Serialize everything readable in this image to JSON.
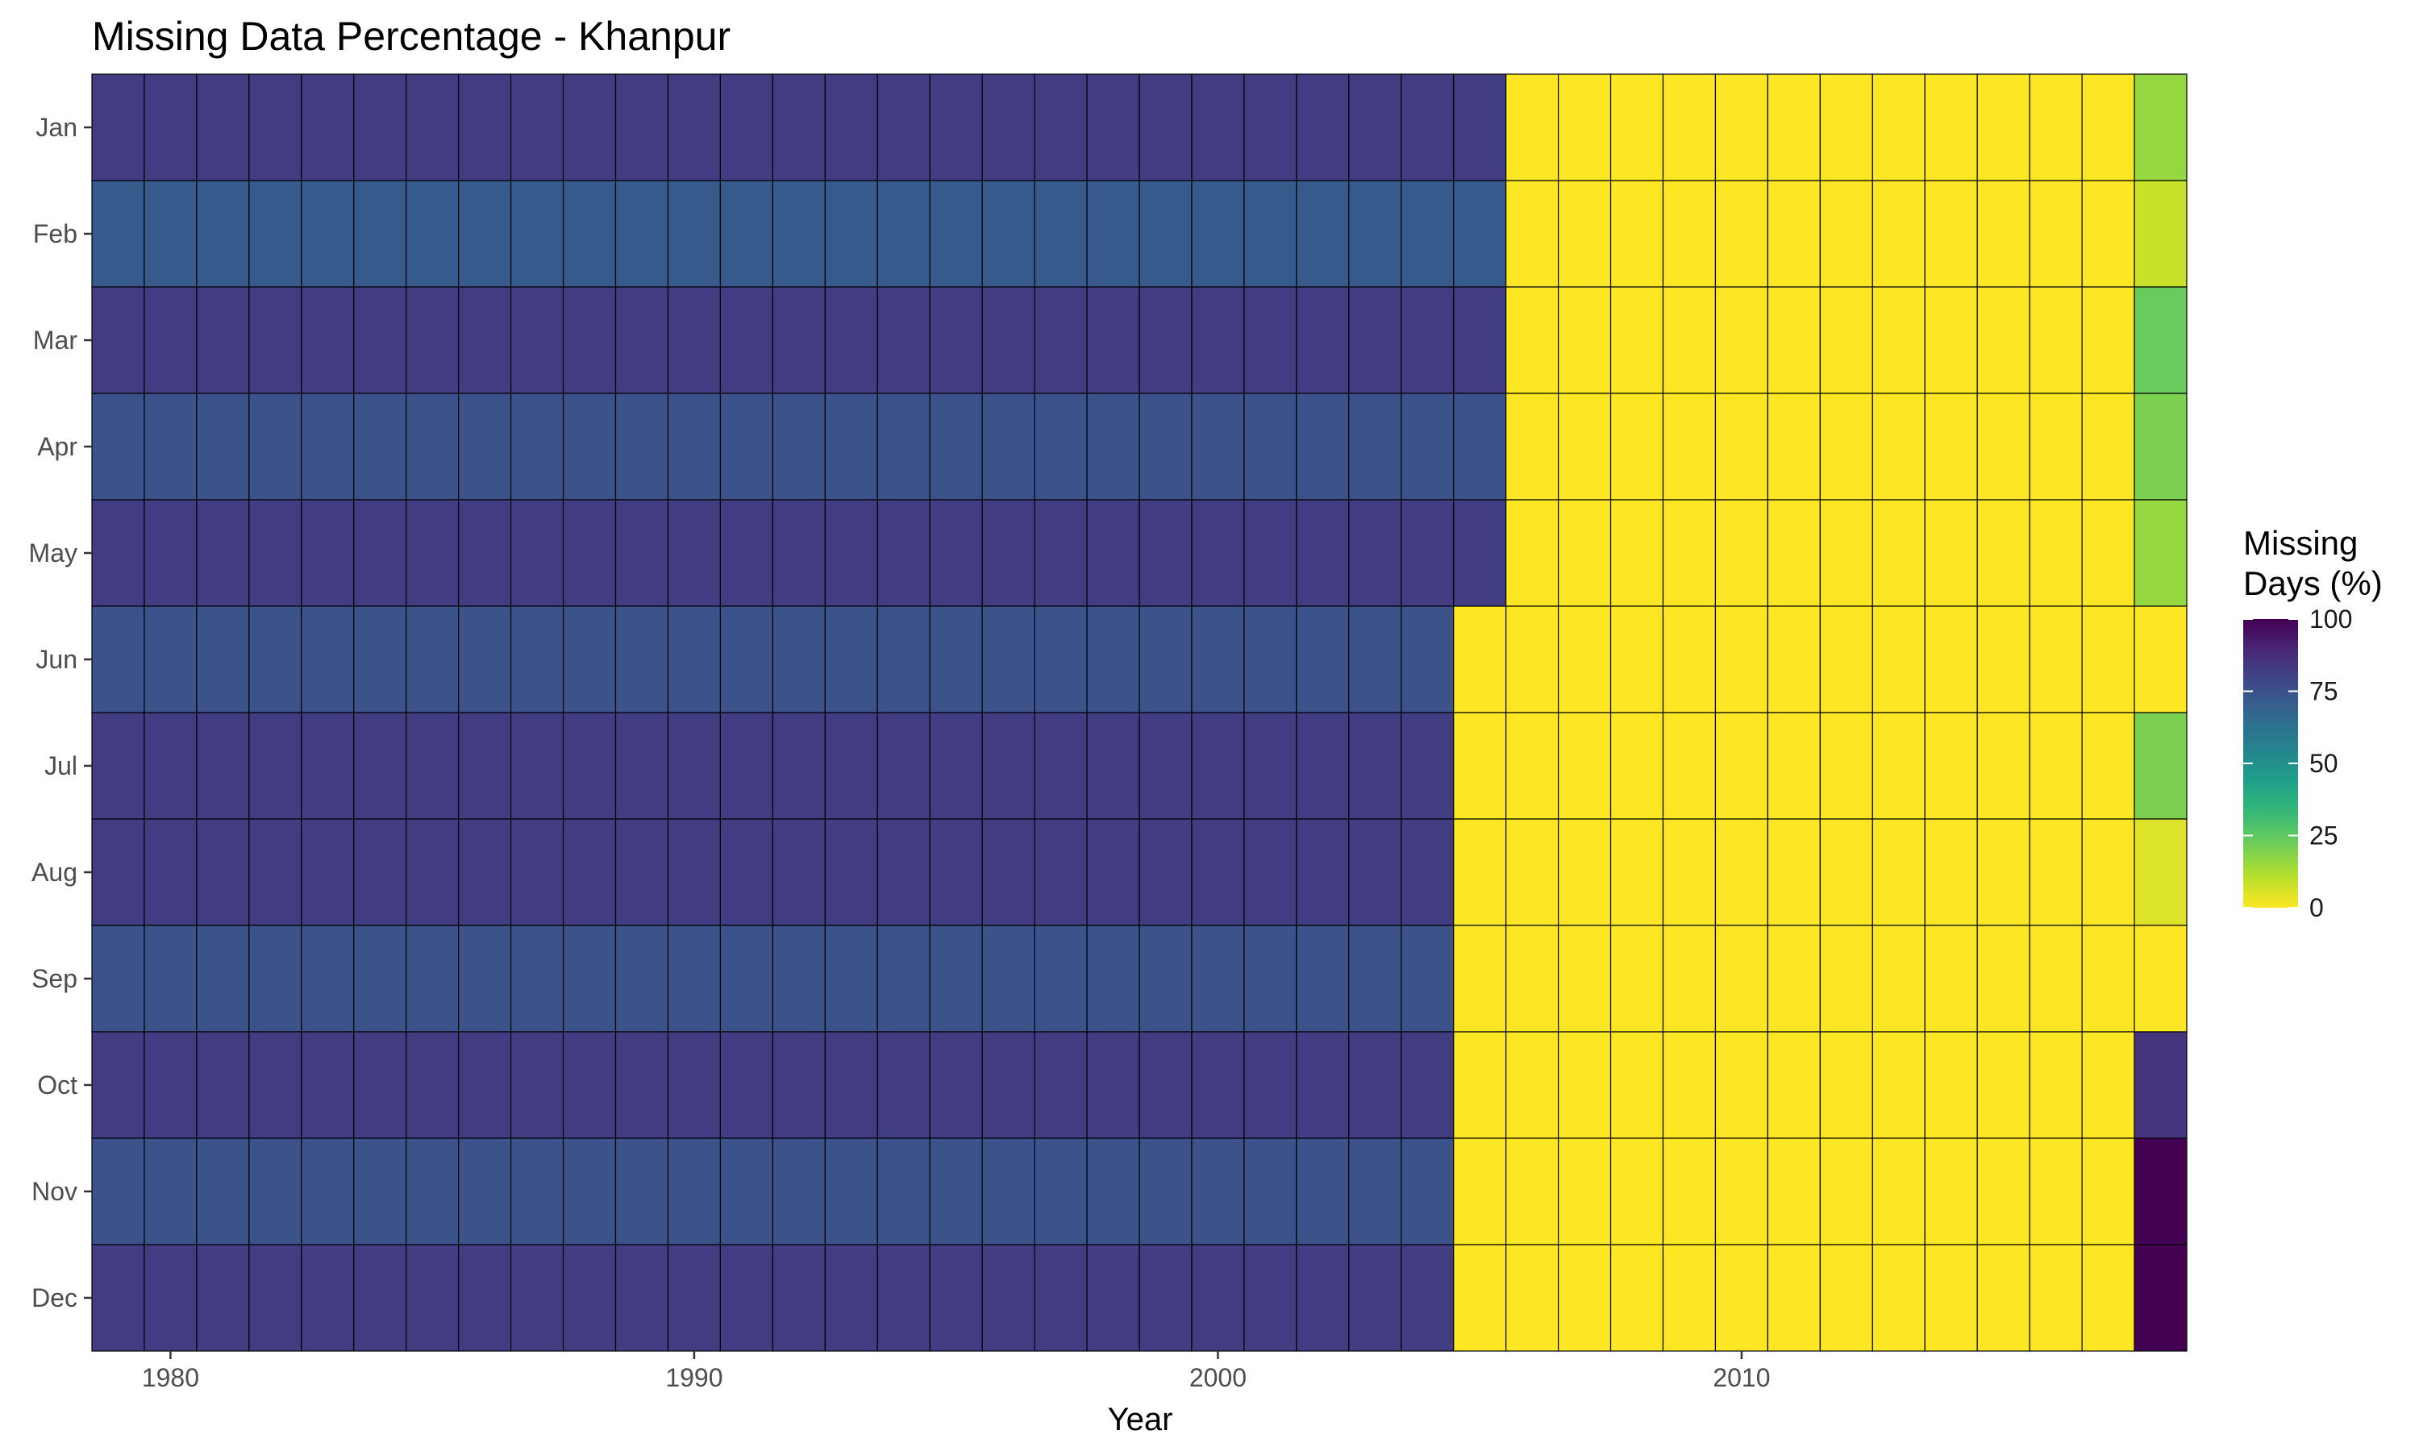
{
  "chart_data": {
    "type": "heatmap",
    "title": "Missing Data Percentage - Khanpur",
    "xlabel": "Year",
    "ylabel": "",
    "x_ticks": [
      1980,
      1990,
      2000,
      2010
    ],
    "xlim": [
      1978.5,
      2018.5
    ],
    "years": [
      1979,
      1980,
      1981,
      1982,
      1983,
      1984,
      1985,
      1986,
      1987,
      1988,
      1989,
      1990,
      1991,
      1992,
      1993,
      1994,
      1995,
      1996,
      1997,
      1998,
      1999,
      2000,
      2001,
      2002,
      2003,
      2004,
      2005,
      2006,
      2007,
      2008,
      2009,
      2010,
      2011,
      2012,
      2013,
      2014,
      2015,
      2016,
      2017,
      2018
    ],
    "months": [
      "Jan",
      "Feb",
      "Mar",
      "Apr",
      "May",
      "Jun",
      "Jul",
      "Aug",
      "Sep",
      "Oct",
      "Nov",
      "Dec"
    ],
    "month_values": {
      "Jan": {
        "pre": 82,
        "pre_last_year": 2005,
        "y2018": 16
      },
      "Feb": {
        "pre": 72,
        "pre_last_year": 2005,
        "y2018": 8
      },
      "Mar": {
        "pre": 82,
        "pre_last_year": 2005,
        "y2018": 23
      },
      "Apr": {
        "pre": 75,
        "pre_last_year": 2005,
        "y2018": 20
      },
      "May": {
        "pre": 82,
        "pre_last_year": 2005,
        "y2018": 16
      },
      "Jun": {
        "pre": 75,
        "pre_last_year": 2004,
        "y2018": 0
      },
      "Jul": {
        "pre": 82,
        "pre_last_year": 2004,
        "y2018": 20
      },
      "Aug": {
        "pre": 82,
        "pre_last_year": 2004,
        "y2018": 5
      },
      "Sep": {
        "pre": 75,
        "pre_last_year": 2004,
        "y2018": 0
      },
      "Oct": {
        "pre": 82,
        "pre_last_year": 2004,
        "y2018": 85
      },
      "Nov": {
        "pre": 75,
        "pre_last_year": 2004,
        "y2018": 100
      },
      "Dec": {
        "pre": 82,
        "pre_last_year": 2004,
        "y2018": 100
      }
    },
    "post_value": 0,
    "legend": {
      "title_lines": [
        "Missing",
        "Days (%)"
      ],
      "breaks": [
        100,
        75,
        50,
        25,
        0
      ],
      "range": [
        0,
        100
      ],
      "placement": "right"
    },
    "colors": {
      "scale": "viridis (reversed)",
      "stops": [
        "#FDE725",
        "#B4DE2C",
        "#6DCD59",
        "#35B779",
        "#1F9E89",
        "#26828E",
        "#31688E",
        "#3E4A89",
        "#482878",
        "#440154"
      ],
      "cell_border": "#000000",
      "background": "#FFFFFF"
    },
    "grid": false
  }
}
